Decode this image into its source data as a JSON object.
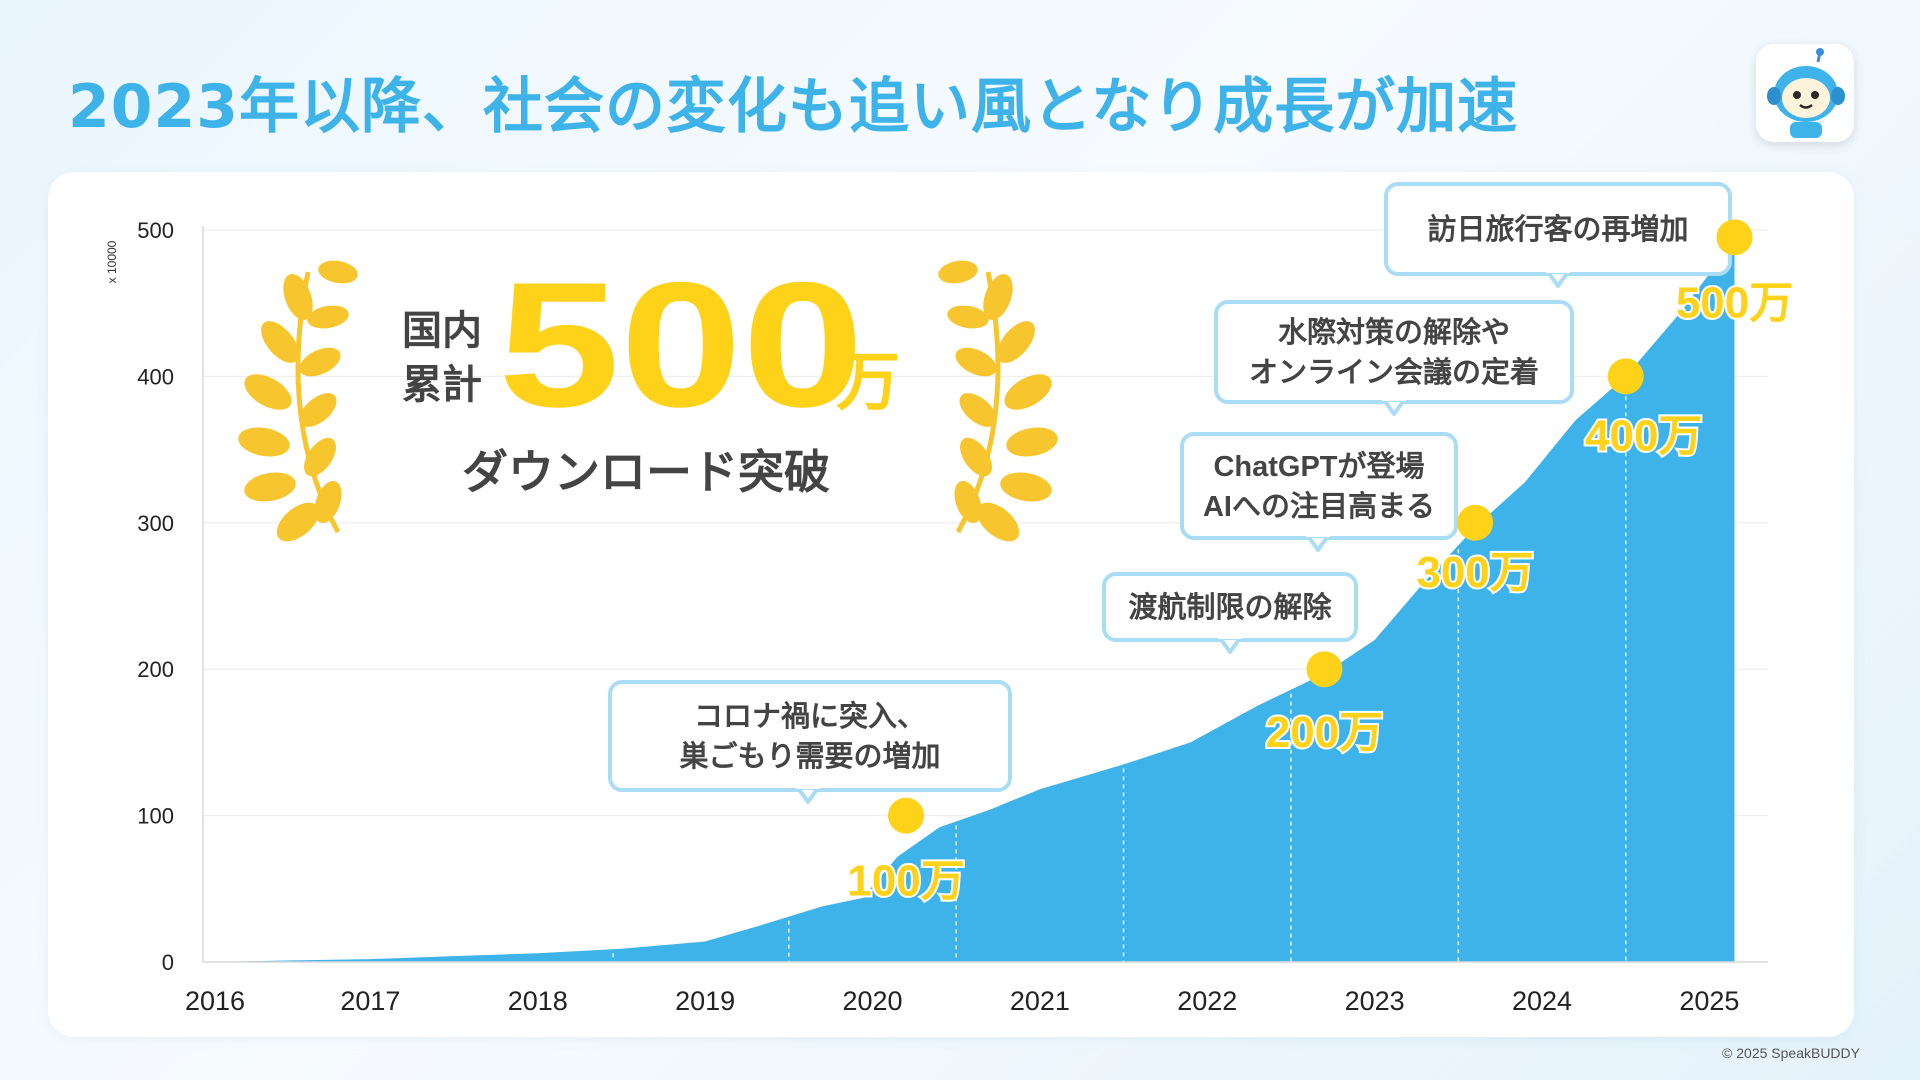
{
  "page": {
    "title": "2023年以降、社会の変化も追い風となり成長が加速",
    "copyright": "© 2025 SpeakBUDDY"
  },
  "colors": {
    "title": "#3db3ea",
    "area": "#3db3ea",
    "milestone": "#ffd21a",
    "laurel": "#f7c62f",
    "callout_border": "#a9dcf5",
    "text_dark": "#444444"
  },
  "hero": {
    "prefix_line1": "国内",
    "prefix_line2": "累計",
    "number": "500",
    "unit": "万",
    "caption": "ダウンロード突破"
  },
  "chart_data": {
    "type": "area",
    "ylabel_unit": "x 10000",
    "ylim": [
      0,
      500
    ],
    "yticks": [
      0,
      100,
      200,
      300,
      400,
      500
    ],
    "xticks": [
      {
        "label": "2016",
        "x": 2016.0
      },
      {
        "label": "2017",
        "x": 2017.0
      },
      {
        "label": "2018",
        "x": 2018.0
      },
      {
        "label": "2019",
        "x": 2019.0
      },
      {
        "label": "2020",
        "x": 2020.0
      },
      {
        "label": "2021",
        "x": 2021.0
      },
      {
        "label": "2022",
        "x": 2022.0
      },
      {
        "label": "2023",
        "x": 2023.0
      },
      {
        "label": "2024",
        "x": 2024.0
      },
      {
        "label": "2025",
        "x": 2025.0
      }
    ],
    "xlim": [
      2016.0,
      2025.35
    ],
    "grid": true,
    "series": [
      {
        "points": [
          [
            2016.0,
            0
          ],
          [
            2016.5,
            1
          ],
          [
            2017.0,
            2
          ],
          [
            2017.5,
            4
          ],
          [
            2018.0,
            6
          ],
          [
            2018.5,
            9
          ],
          [
            2019.0,
            14
          ],
          [
            2019.3,
            24
          ],
          [
            2019.7,
            38
          ],
          [
            2019.95,
            44
          ],
          [
            2020.0,
            52
          ],
          [
            2020.15,
            72
          ],
          [
            2020.4,
            92
          ],
          [
            2020.7,
            104
          ],
          [
            2021.0,
            118
          ],
          [
            2021.5,
            135
          ],
          [
            2021.9,
            150
          ],
          [
            2022.3,
            175
          ],
          [
            2022.7,
            197
          ],
          [
            2023.0,
            220
          ],
          [
            2023.3,
            260
          ],
          [
            2023.6,
            297
          ],
          [
            2023.9,
            328
          ],
          [
            2024.2,
            370
          ],
          [
            2024.5,
            400
          ],
          [
            2024.8,
            440
          ],
          [
            2025.0,
            470
          ],
          [
            2025.15,
            495
          ]
        ]
      }
    ],
    "milestones": [
      {
        "x": 2020.2,
        "y": 100,
        "label": "100万"
      },
      {
        "x": 2022.7,
        "y": 200,
        "label": "200万"
      },
      {
        "x": 2023.6,
        "y": 300,
        "label": "300万"
      },
      {
        "x": 2024.5,
        "y": 400,
        "label": "400万"
      },
      {
        "x": 2025.15,
        "y": 495,
        "label": "500万"
      }
    ],
    "annotations": [
      {
        "lines": [
          "コロナ禍に突入、",
          "巣ごもり需要の増加"
        ]
      },
      {
        "lines": [
          "渡航制限の解除"
        ]
      },
      {
        "lines": [
          "ChatGPTが登場",
          "AIへの注目高まる"
        ]
      },
      {
        "lines": [
          "水際対策の解除や",
          "オンライン会議の定着"
        ]
      },
      {
        "lines": [
          "訪日旅行客の再増加"
        ]
      }
    ]
  }
}
